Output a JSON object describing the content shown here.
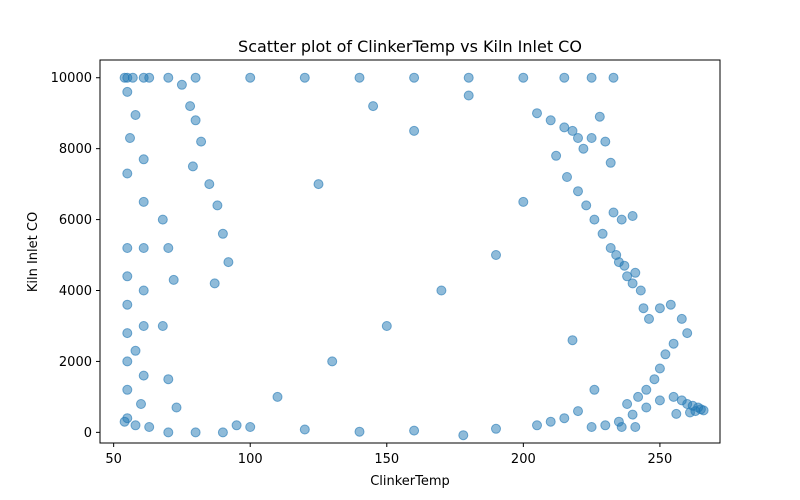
{
  "chart_data": {
    "type": "scatter",
    "title": "Scatter plot of ClinkerTemp vs Kiln Inlet CO",
    "xlabel": "ClinkerTemp",
    "ylabel": "Kiln Inlet CO",
    "xlim": [
      45,
      272
    ],
    "ylim": [
      -300,
      10500
    ],
    "xticks": [
      50,
      100,
      150,
      200,
      250
    ],
    "yticks": [
      0,
      2000,
      4000,
      6000,
      8000,
      10000
    ],
    "xtick_labels": [
      "50",
      "100",
      "150",
      "200",
      "250"
    ],
    "ytick_labels": [
      "0",
      "2000",
      "4000",
      "6000",
      "8000",
      "10000"
    ],
    "grid": false,
    "legend": "none",
    "marker_color": "#1f77b4",
    "marker_alpha": 0.5,
    "series": [
      {
        "points": [
          [
            54,
            10000
          ],
          [
            55,
            10000
          ],
          [
            57,
            10000
          ],
          [
            61,
            10000
          ],
          [
            63,
            10000
          ],
          [
            70,
            10000
          ],
          [
            80,
            10000
          ],
          [
            100,
            10000
          ],
          [
            120,
            10000
          ],
          [
            140,
            10000
          ],
          [
            160,
            10000
          ],
          [
            180,
            10000
          ],
          [
            200,
            10000
          ],
          [
            215,
            10000
          ],
          [
            225,
            10000
          ],
          [
            233,
            10000
          ],
          [
            55,
            9600
          ],
          [
            58,
            8950
          ],
          [
            56,
            8300
          ],
          [
            61,
            7700
          ],
          [
            55,
            7300
          ],
          [
            61,
            6500
          ],
          [
            55,
            5200
          ],
          [
            61,
            5200
          ],
          [
            55,
            4400
          ],
          [
            61,
            4000
          ],
          [
            55,
            3600
          ],
          [
            61,
            3000
          ],
          [
            55,
            2800
          ],
          [
            58,
            2300
          ],
          [
            55,
            2000
          ],
          [
            61,
            1600
          ],
          [
            55,
            1200
          ],
          [
            60,
            800
          ],
          [
            55,
            400
          ],
          [
            58,
            200
          ],
          [
            63,
            150
          ],
          [
            54,
            300
          ],
          [
            68,
            6000
          ],
          [
            70,
            5200
          ],
          [
            72,
            4300
          ],
          [
            68,
            3000
          ],
          [
            70,
            1500
          ],
          [
            73,
            700
          ],
          [
            70,
            0
          ],
          [
            80,
            0
          ],
          [
            90,
            0
          ],
          [
            95,
            200
          ],
          [
            75,
            9800
          ],
          [
            78,
            9200
          ],
          [
            80,
            8800
          ],
          [
            82,
            8200
          ],
          [
            79,
            7500
          ],
          [
            85,
            7000
          ],
          [
            88,
            6400
          ],
          [
            90,
            5600
          ],
          [
            92,
            4800
          ],
          [
            87,
            4200
          ],
          [
            205,
            9000
          ],
          [
            210,
            8800
          ],
          [
            215,
            8600
          ],
          [
            218,
            8500
          ],
          [
            220,
            8300
          ],
          [
            222,
            8000
          ],
          [
            225,
            8300
          ],
          [
            228,
            8900
          ],
          [
            230,
            8200
          ],
          [
            232,
            7600
          ],
          [
            212,
            7800
          ],
          [
            216,
            7200
          ],
          [
            220,
            6800
          ],
          [
            223,
            6400
          ],
          [
            226,
            6000
          ],
          [
            229,
            5600
          ],
          [
            232,
            5200
          ],
          [
            235,
            4800
          ],
          [
            238,
            4400
          ],
          [
            240,
            4200
          ],
          [
            233,
            6200
          ],
          [
            236,
            6000
          ],
          [
            240,
            6100
          ],
          [
            234,
            5000
          ],
          [
            237,
            4700
          ],
          [
            241,
            4500
          ],
          [
            243,
            4000
          ],
          [
            244,
            3500
          ],
          [
            246,
            3200
          ],
          [
            250,
            3500
          ],
          [
            254,
            3600
          ],
          [
            258,
            3200
          ],
          [
            260,
            2800
          ],
          [
            255,
            2500
          ],
          [
            252,
            2200
          ],
          [
            250,
            1800
          ],
          [
            248,
            1500
          ],
          [
            245,
            1200
          ],
          [
            242,
            1000
          ],
          [
            238,
            800
          ],
          [
            255,
            1000
          ],
          [
            258,
            900
          ],
          [
            260,
            800
          ],
          [
            262,
            750
          ],
          [
            264,
            700
          ],
          [
            265,
            650
          ],
          [
            266,
            620
          ],
          [
            263,
            600
          ],
          [
            261,
            560
          ],
          [
            256,
            520
          ],
          [
            250,
            900
          ],
          [
            245,
            700
          ],
          [
            240,
            500
          ],
          [
            235,
            300
          ],
          [
            230,
            200
          ],
          [
            225,
            150
          ],
          [
            236,
            150
          ],
          [
            241,
            150
          ],
          [
            220,
            600
          ],
          [
            210,
            300
          ],
          [
            110,
            1000
          ],
          [
            130,
            2000
          ],
          [
            150,
            3000
          ],
          [
            170,
            4000
          ],
          [
            190,
            5000
          ],
          [
            125,
            7000
          ],
          [
            160,
            8500
          ],
          [
            180,
            9500
          ],
          [
            145,
            9200
          ],
          [
            200,
            6500
          ],
          [
            178,
            -80
          ],
          [
            160,
            50
          ],
          [
            140,
            20
          ],
          [
            120,
            80
          ],
          [
            100,
            150
          ],
          [
            190,
            100
          ],
          [
            205,
            200
          ],
          [
            215,
            400
          ],
          [
            226,
            1200
          ],
          [
            218,
            2600
          ]
        ]
      }
    ]
  }
}
